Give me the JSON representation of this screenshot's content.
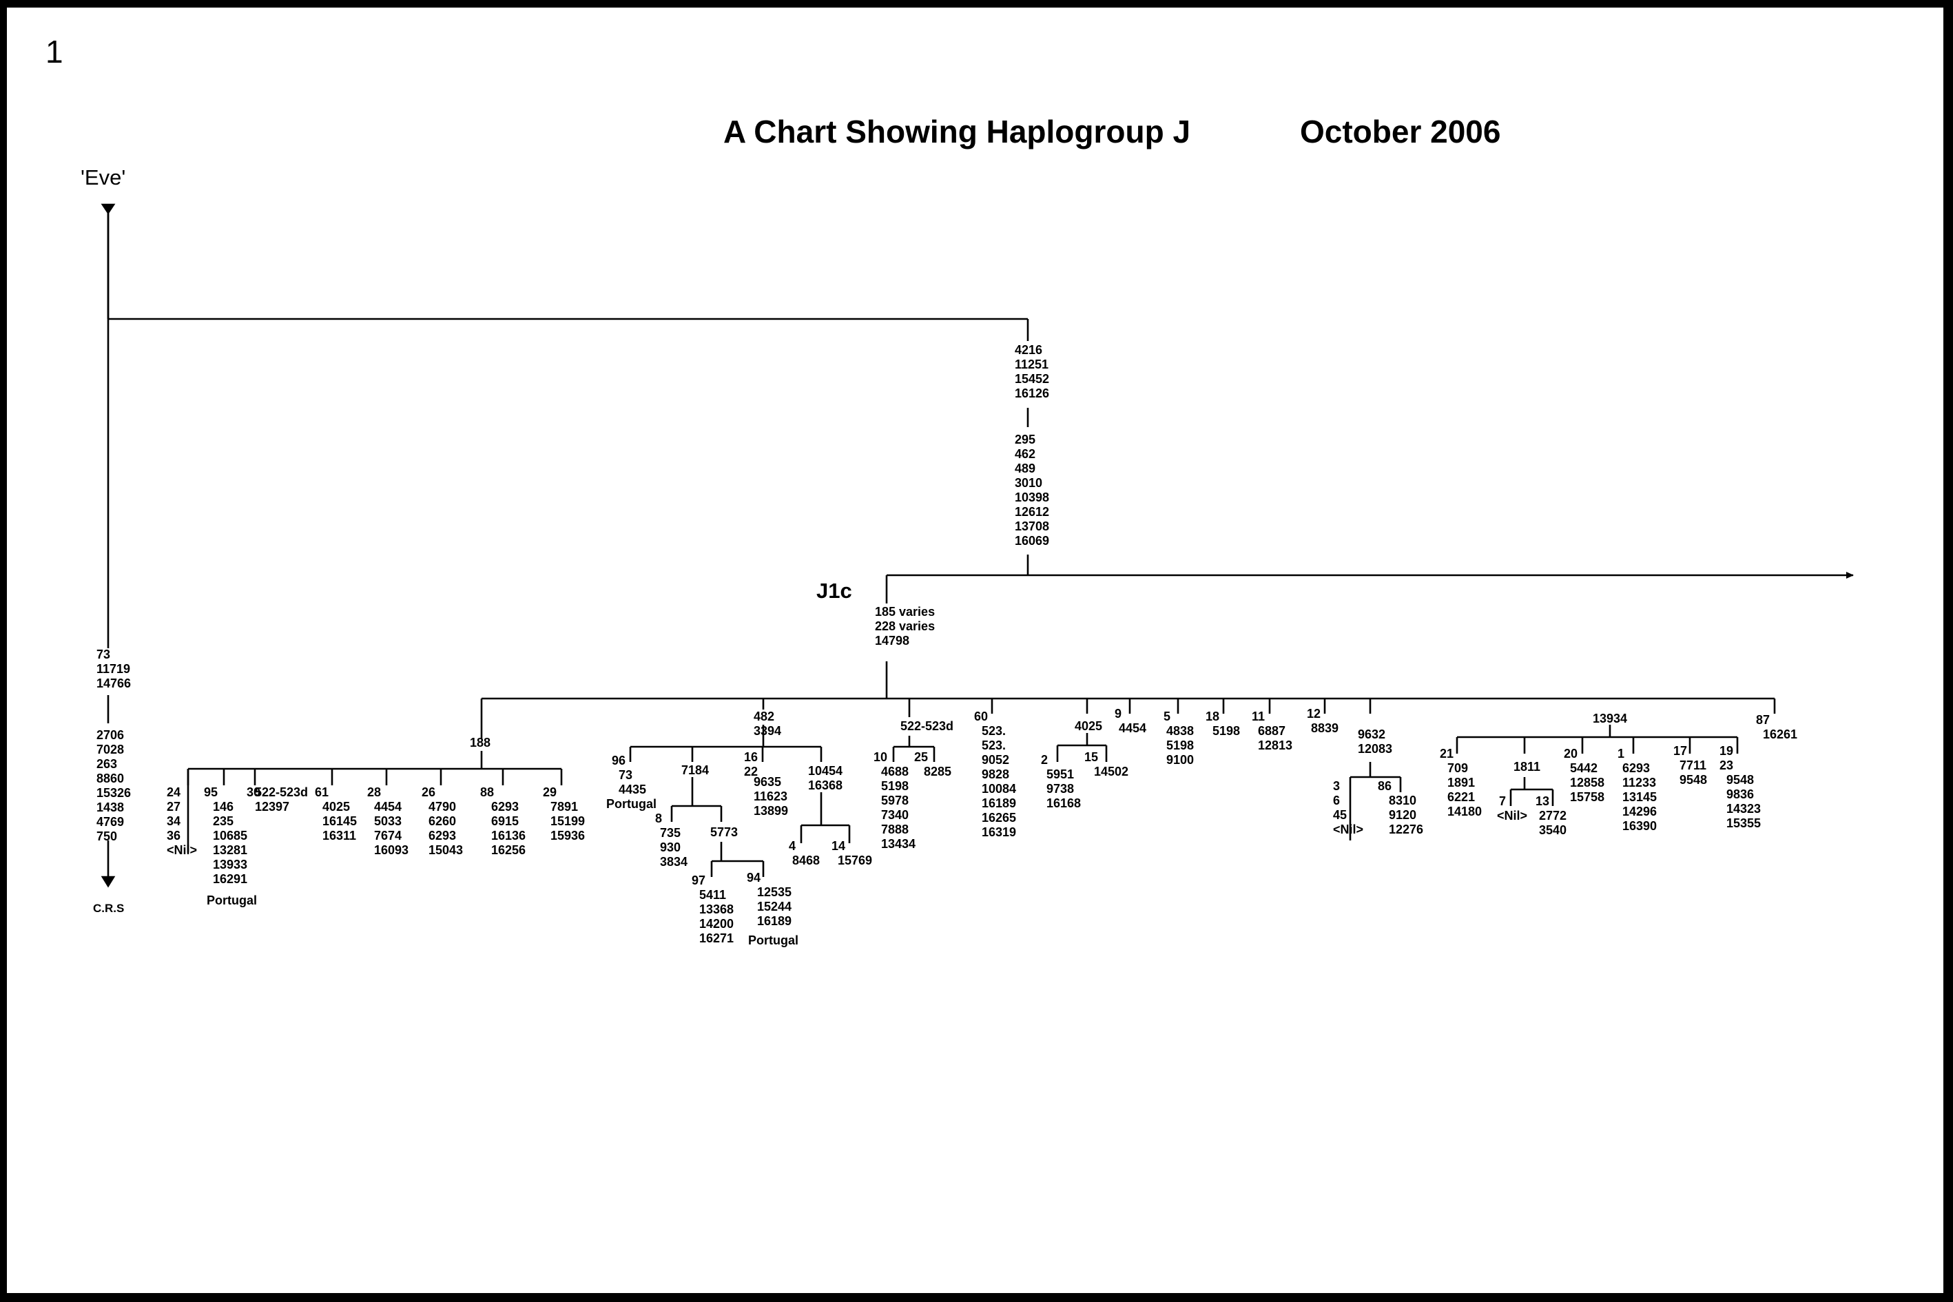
{
  "page_number": "1",
  "title": "A Chart Showing Haplogroup  J",
  "date": "October 2006",
  "root": {
    "label": "'Eve'",
    "left_branch": {
      "mutations_a": [
        "73",
        "11719",
        "14766"
      ],
      "mutations_b": [
        "2706",
        "7028",
        "263",
        "8860",
        "15326",
        "1438",
        "4769",
        "750"
      ],
      "end_label": "C.R.S"
    },
    "j_branch": {
      "mutations_a": [
        "4216",
        "11251",
        "15452",
        "16126"
      ],
      "mutations_b": [
        "295",
        "462",
        "489",
        "3010",
        "10398",
        "12612",
        "13708",
        "16069"
      ]
    }
  },
  "j1c": {
    "label": "J1c",
    "mutations": [
      "185  varies",
      "228  varies",
      "14798"
    ],
    "branch_188": {
      "mutation": "188",
      "leaves": [
        {
          "id": "24\n27\n34\n36\n<Nil>"
        },
        {
          "id": "95",
          "mutations": "146\n235\n10685\n13281\n13933\n16291",
          "note": "Portugal"
        },
        {
          "id": "30",
          "mutations": "522-523d\n12397"
        },
        {
          "id": "61",
          "mutations": "4025\n16145\n16311"
        },
        {
          "id": "28",
          "mutations": "4454\n5033\n7674\n16093"
        },
        {
          "id": "26",
          "mutations": "4790\n6260\n6293\n15043"
        },
        {
          "id": "88",
          "mutations": "6293\n6915\n16136\n16256"
        },
        {
          "id": "29",
          "mutations": "7891\n15199\n15936"
        }
      ]
    },
    "branch_482": {
      "mutations": "482\n3394",
      "n96": {
        "id": "96",
        "mutations": "73\n4435",
        "note": "Portugal"
      },
      "n7184": {
        "mutation": "7184"
      },
      "n8": {
        "id": "8",
        "mutations": "735\n930\n3834"
      },
      "n5773": {
        "mutation": "5773"
      },
      "n97": {
        "id": "97",
        "mutations": "5411\n13368\n14200\n16271"
      },
      "n94": {
        "id": "94",
        "mutations": "12535\n15244\n16189",
        "note": "Portugal"
      },
      "n16": {
        "id": "16\n22",
        "mutations": "9635\n11623\n13899"
      },
      "n10454": {
        "mutations": "10454\n16368"
      },
      "n4": {
        "id": "4",
        "mutations": "8468"
      },
      "n14": {
        "id": "14",
        "mutations": "15769"
      }
    },
    "branch_522": {
      "mutation": "522-523d",
      "n10": {
        "id": "10",
        "mutations": "4688\n5198\n5978\n7340\n7888\n13434"
      },
      "n25": {
        "id": "25",
        "mutations": "8285"
      }
    },
    "n60": {
      "id": "60",
      "mutations": "523.\n523.\n9052\n9828\n10084\n16189\n16265\n16319"
    },
    "branch_4025": {
      "mutation": "4025",
      "n2": {
        "id": "2",
        "mutations": "5951\n9738\n16168"
      },
      "n15": {
        "id": "15",
        "mutations": "14502"
      }
    },
    "n9": {
      "id": "9",
      "mutations": "4454"
    },
    "n5": {
      "id": "5",
      "mutations": "4838\n5198\n9100"
    },
    "n18": {
      "id": "18",
      "mutations": "5198"
    },
    "n11": {
      "id": "11",
      "mutations": "6887\n12813"
    },
    "n12": {
      "id": "12",
      "mutations": "8839"
    },
    "branch_9632": {
      "mutations": "9632\n12083",
      "n3": {
        "id": "3\n6\n45\n<Nil>"
      },
      "n86": {
        "id": "86",
        "mutations": "8310\n9120\n12276"
      }
    },
    "branch_13934": {
      "mutation": "13934",
      "n21": {
        "id": "21",
        "mutations": "709\n1891\n6221\n14180"
      },
      "n1811": {
        "mutation": "1811"
      },
      "n7": {
        "id": "7",
        "mutations": "<Nil>"
      },
      "n13": {
        "id": "13",
        "mutations": "2772\n3540"
      },
      "n20": {
        "id": "20",
        "mutations": "5442\n12858\n15758"
      },
      "n1": {
        "id": "1",
        "mutations": "6293\n11233\n13145\n14296\n16390"
      },
      "n17": {
        "id": "17",
        "mutations": "7711\n9548"
      },
      "n19": {
        "id": "19\n23",
        "mutations": "9548\n9836\n14323\n15355"
      }
    },
    "n87": {
      "id": "87",
      "mutations": "16261"
    }
  }
}
